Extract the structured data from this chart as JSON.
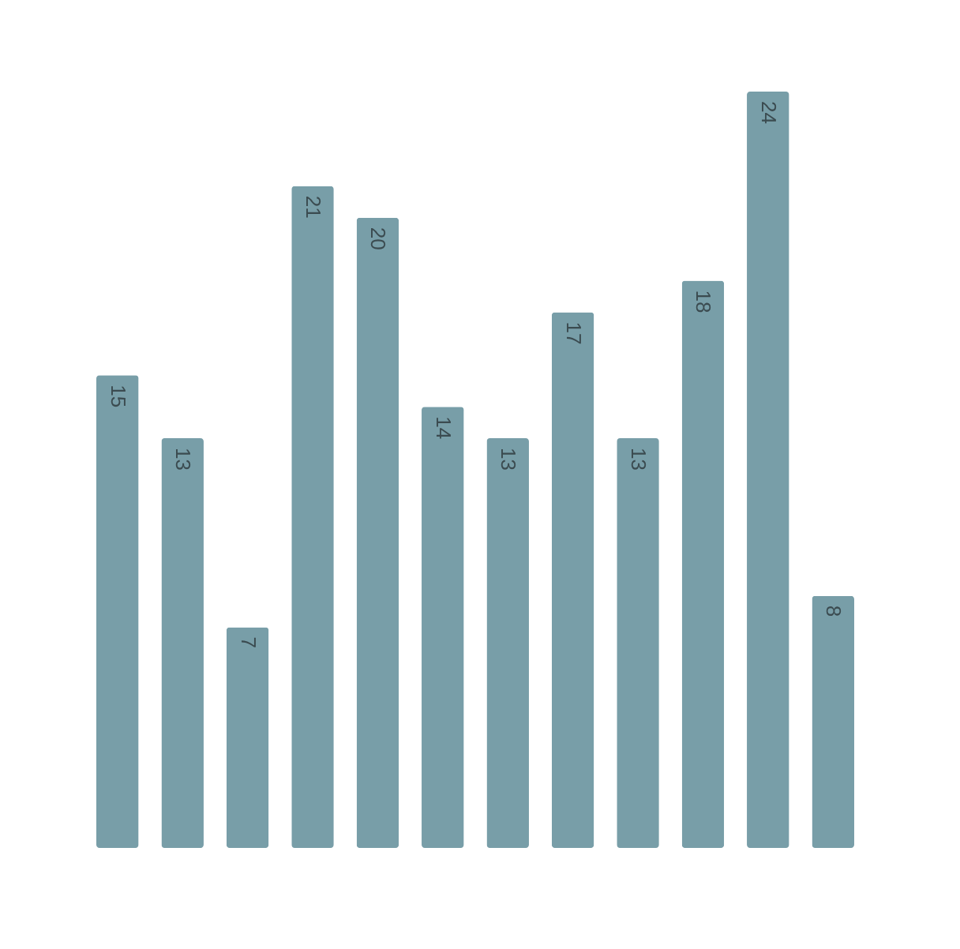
{
  "chart_data": {
    "type": "bar",
    "categories": [
      null,
      null,
      null,
      null,
      null,
      null,
      null,
      null,
      null,
      null,
      null,
      null
    ],
    "values": [
      15,
      13,
      7,
      21,
      20,
      14,
      13,
      17,
      13,
      18,
      24,
      8
    ],
    "color": "#789ea8",
    "ylim": [
      0,
      24
    ],
    "data_labels": true,
    "grid": false,
    "tick_labels": false
  }
}
